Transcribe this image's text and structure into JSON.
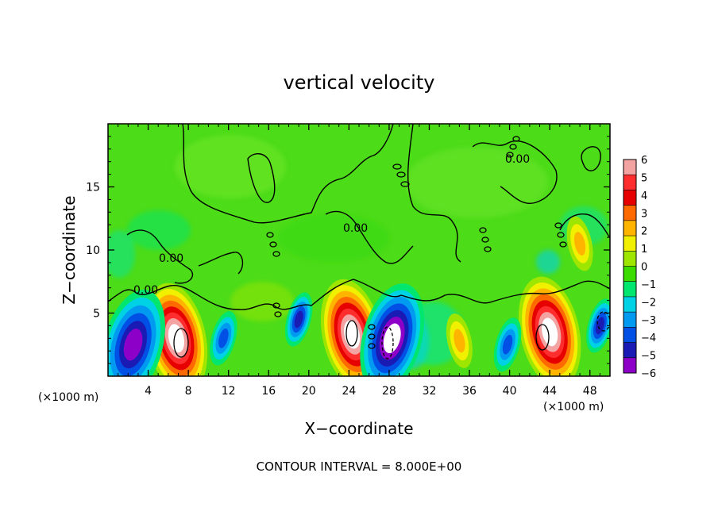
{
  "chart_data": {
    "type": "heatmap",
    "title": "vertical velocity",
    "xlabel": "X−coordinate",
    "ylabel": "Z−coordinate",
    "x_unit": "(×1000 m)",
    "z_unit": "(×1000 m)",
    "xlim": [
      0,
      50
    ],
    "ylim": [
      0,
      20
    ],
    "x_ticks": [
      "4",
      "8",
      "12",
      "16",
      "20",
      "24",
      "28",
      "32",
      "36",
      "40",
      "44",
      "48"
    ],
    "y_ticks": [
      "5",
      "10",
      "15"
    ],
    "colorbar": {
      "labels": [
        "6",
        "5",
        "4",
        "3",
        "2",
        "1",
        "0",
        "−1",
        "−2",
        "−3",
        "−4",
        "−5",
        "−6"
      ],
      "colors": [
        "#f4a3a3",
        "#ff2e2e",
        "#e60000",
        "#ff6a00",
        "#ffb400",
        "#f0f000",
        "#9ee600",
        "#3cdc00",
        "#00e66e",
        "#00d2e6",
        "#009bf0",
        "#0050e6",
        "#1a1ab4",
        "#8c00c8"
      ]
    },
    "footer": "CONTOUR INTERVAL = 8.000E+00",
    "contour_labels": [
      "0.00",
      "0.00",
      "0.00",
      "0.00"
    ],
    "features": [
      {
        "kind": "updraft",
        "x": 6.8,
        "z": 3.0,
        "w": 12
      },
      {
        "kind": "updraft",
        "x": 24.3,
        "z": 3.3,
        "w": 14
      },
      {
        "kind": "updraft",
        "x": 44.0,
        "z": 3.5,
        "w": 12
      },
      {
        "kind": "updraft",
        "x": 35.0,
        "z": 2.8,
        "w": 3.5
      },
      {
        "kind": "updraft",
        "x": 47.0,
        "z": 10.5,
        "w": 3
      },
      {
        "kind": "downdraft",
        "x": 2.5,
        "z": 2.5,
        "w": -9
      },
      {
        "kind": "downdraft",
        "x": 11.5,
        "z": 3.0,
        "w": -5
      },
      {
        "kind": "downdraft",
        "x": 19.0,
        "z": 4.5,
        "w": -6
      },
      {
        "kind": "downdraft",
        "x": 28.3,
        "z": 3.0,
        "w": -10
      },
      {
        "kind": "downdraft",
        "x": 39.8,
        "z": 2.5,
        "w": -5
      },
      {
        "kind": "downdraft",
        "x": 49.0,
        "z": 4.0,
        "w": -7
      }
    ]
  }
}
